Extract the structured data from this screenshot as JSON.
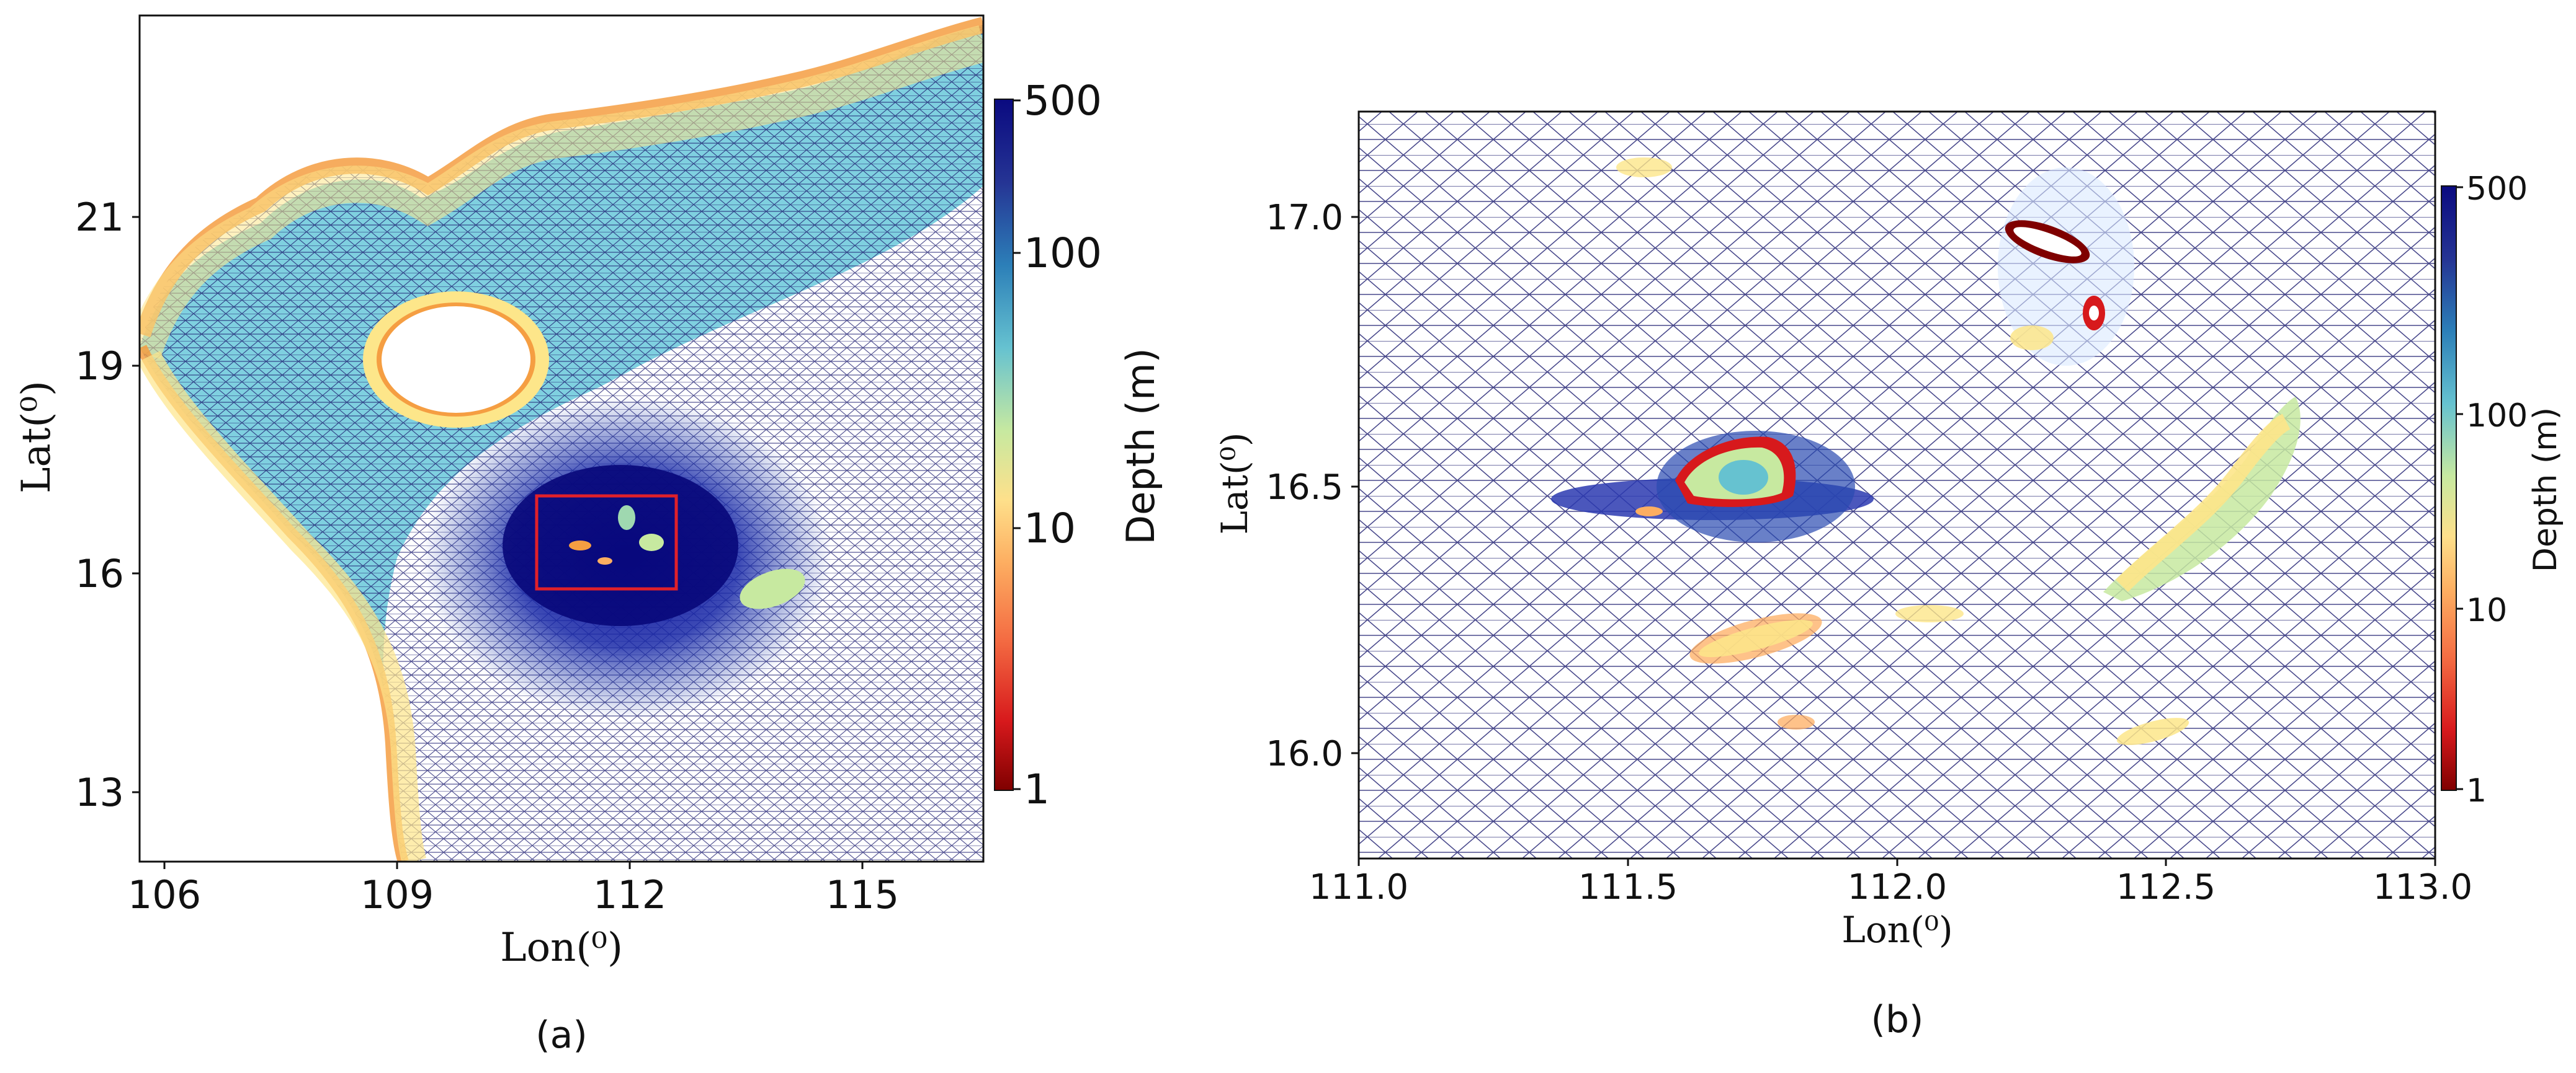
{
  "colors": {
    "mesh": "#1a1a6e",
    "deep": "#08087a",
    "frame": "#111111",
    "box": "#e0202a",
    "cmap": [
      "#7f0000",
      "#d7191c",
      "#f46d43",
      "#fdae61",
      "#fee08b",
      "#c7e9a0",
      "#66c2d0",
      "#2c7fb8",
      "#253494",
      "#0a0a80"
    ]
  },
  "panel_a": {
    "caption": "(a)",
    "xlabel": "Lon(⁰)",
    "ylabel": "Lat(⁰)",
    "xticks": [
      "106",
      "109",
      "112",
      "115"
    ],
    "yticks": [
      "13",
      "16",
      "19",
      "21"
    ],
    "colorbar": {
      "label": "Depth (m)",
      "ticks": [
        "500",
        "100",
        "10",
        "1"
      ],
      "scale": "log"
    },
    "inset_box": {
      "lon": [
        111.0,
        113.0
      ],
      "lat": [
        15.8,
        17.2
      ]
    }
  },
  "panel_b": {
    "caption": "(b)",
    "xlabel": "Lon(⁰)",
    "ylabel": "Lat(⁰)",
    "xticks": [
      "111.0",
      "111.5",
      "112.0",
      "112.5",
      "113.0"
    ],
    "yticks": [
      "16.0",
      "16.5",
      "17.0"
    ],
    "colorbar": {
      "label": "Depth (m)",
      "ticks": [
        "500",
        "100",
        "10",
        "1"
      ],
      "scale": "log"
    }
  }
}
